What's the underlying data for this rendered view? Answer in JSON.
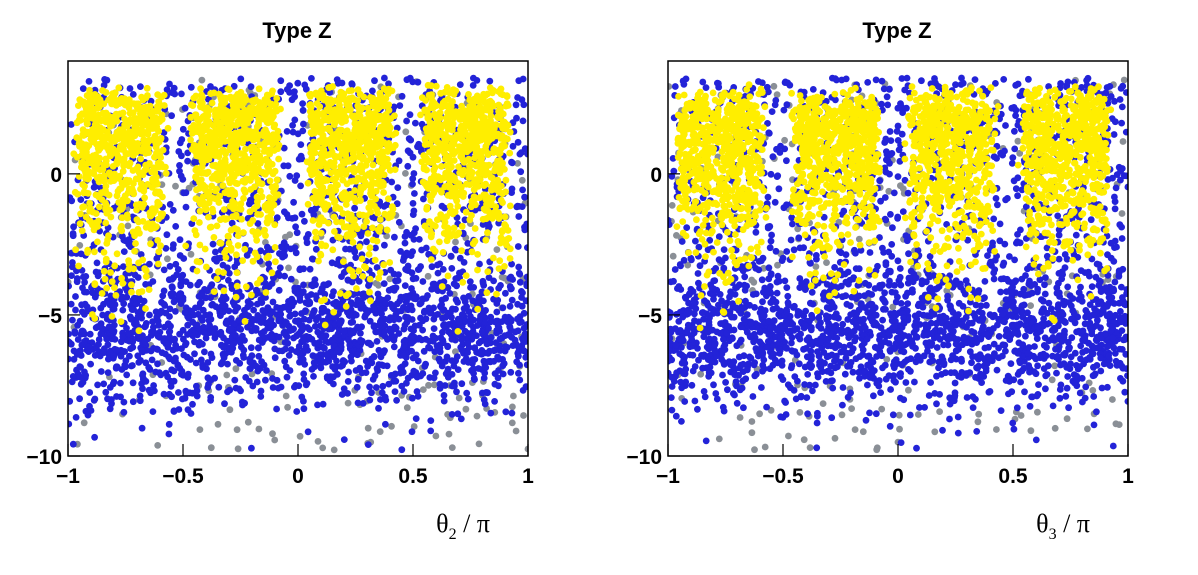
{
  "colors": {
    "background": "#ffffff",
    "frame": "#000000",
    "gray_points": "#8a8f96",
    "blue_points": "#2323d8",
    "yellow_points": "#ffee00"
  },
  "chart_data": [
    {
      "type": "scatter",
      "title": "Type Z",
      "xlabel": "θ₂ / π",
      "xlabel_main": "θ",
      "xlabel_sub": "2",
      "xlabel_tail": " / π",
      "ylabel": "",
      "xlim": [
        -1,
        1
      ],
      "ylim": [
        -10,
        4
      ],
      "grid": false,
      "x_ticks": [
        {
          "value": -1,
          "label": "−1"
        },
        {
          "value": -0.5,
          "label": "−0.5"
        },
        {
          "value": 0,
          "label": "0"
        },
        {
          "value": 0.5,
          "label": "0.5"
        },
        {
          "value": 1,
          "label": "1"
        }
      ],
      "y_ticks": [
        {
          "value": 0,
          "label": "0"
        },
        {
          "value": -5,
          "label": "−5"
        },
        {
          "value": -10,
          "label": "−10"
        }
      ],
      "series_description": [
        {
          "color": "#8a8f96",
          "x_range": [
            -1,
            1
          ],
          "y_range": [
            -9.8,
            3.5
          ]
        },
        {
          "color": "#2323d8",
          "x_range": [
            -1,
            1
          ],
          "y_range": [
            -9.8,
            3.5
          ]
        },
        {
          "color": "#ffee00",
          "clusters_x": [
            -0.77,
            -0.27,
            0.23,
            0.73
          ],
          "y_range": [
            -5.5,
            3.5
          ]
        }
      ]
    },
    {
      "type": "scatter",
      "title": "Type Z",
      "xlabel": "θ₃ / π",
      "xlabel_main": "θ",
      "xlabel_sub": "3",
      "xlabel_tail": " / π",
      "ylabel": "",
      "xlim": [
        -1,
        1
      ],
      "ylim": [
        -10,
        4
      ],
      "grid": false,
      "x_ticks": [
        {
          "value": -1,
          "label": "−1"
        },
        {
          "value": -0.5,
          "label": "−0.5"
        },
        {
          "value": 0,
          "label": "0"
        },
        {
          "value": 0.5,
          "label": "0.5"
        },
        {
          "value": 1,
          "label": "1"
        }
      ],
      "y_ticks": [
        {
          "value": 0,
          "label": "0"
        },
        {
          "value": -5,
          "label": "−5"
        },
        {
          "value": -10,
          "label": "−10"
        }
      ],
      "series_description": [
        {
          "color": "#8a8f96",
          "x_range": [
            -1,
            1
          ],
          "y_range": [
            -9.8,
            3.5
          ]
        },
        {
          "color": "#2323d8",
          "x_range": [
            -1,
            1
          ],
          "y_range": [
            -9.8,
            3.5
          ]
        },
        {
          "color": "#ffee00",
          "clusters_x": [
            -0.77,
            -0.27,
            0.23,
            0.73
          ],
          "y_range": [
            -5.5,
            3.5
          ]
        }
      ]
    }
  ]
}
